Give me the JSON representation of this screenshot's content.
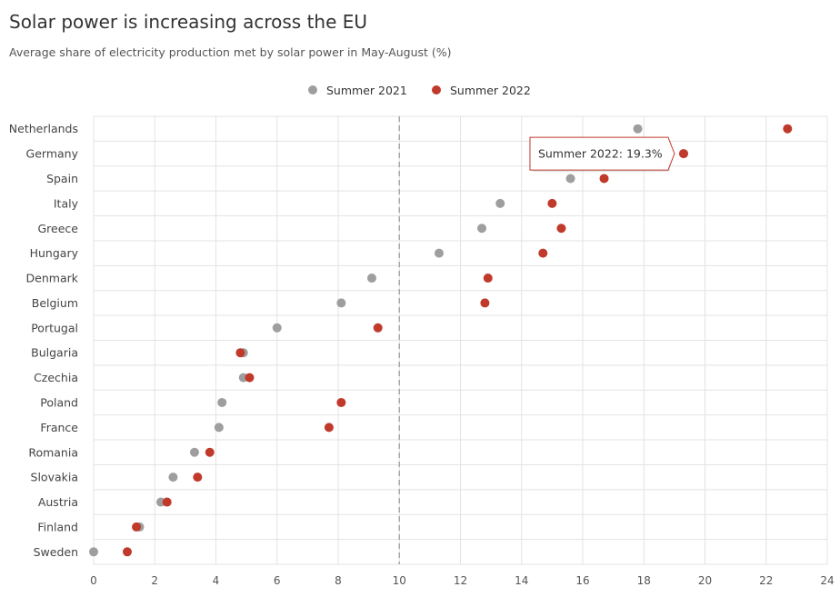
{
  "chart_data": {
    "type": "scatter",
    "title": "Solar power is increasing across the EU",
    "subtitle": "Average share of electricity production met by solar power in May-August (%)",
    "categories": [
      "Netherlands",
      "Germany",
      "Spain",
      "Italy",
      "Greece",
      "Hungary",
      "Denmark",
      "Belgium",
      "Portugal",
      "Bulgaria",
      "Czechia",
      "Poland",
      "France",
      "Romania",
      "Slovakia",
      "Austria",
      "Finland",
      "Sweden"
    ],
    "series": [
      {
        "name": "Summer 2021",
        "color": "#9e9e9e",
        "values": [
          17.8,
          19.3,
          15.6,
          13.3,
          12.7,
          11.3,
          9.1,
          8.1,
          6.0,
          4.9,
          4.9,
          4.2,
          4.1,
          3.3,
          2.6,
          2.2,
          1.5,
          0.0
        ]
      },
      {
        "name": "Summer 2022",
        "color": "#c0392b",
        "values": [
          22.7,
          19.3,
          16.7,
          15.0,
          15.3,
          14.7,
          12.9,
          12.8,
          9.3,
          4.8,
          5.1,
          8.1,
          7.7,
          3.8,
          3.4,
          2.4,
          1.4,
          1.1
        ]
      }
    ],
    "xlim": [
      0,
      24
    ],
    "xticks": [
      "0",
      "2",
      "4",
      "6",
      "8",
      "10",
      "12",
      "14",
      "16",
      "18",
      "20",
      "22",
      "24"
    ],
    "reference_line": 10,
    "legend_position": "top-center",
    "grid": true
  },
  "tooltip": {
    "text": "Summer 2022: 19.3%",
    "category": "Germany",
    "series": "Summer 2022"
  }
}
